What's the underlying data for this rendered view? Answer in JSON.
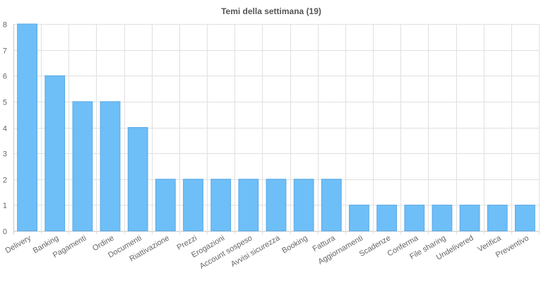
{
  "chart_data": {
    "type": "bar",
    "title": "Temi della settimana (19)",
    "xlabel": "",
    "ylabel": "",
    "categories": [
      "Delivery",
      "Banking",
      "Pagamenti",
      "Ordine",
      "Documenti",
      "Riattivazione",
      "Prezzi",
      "Erogazioni",
      "Account sospeso",
      "Avvisi sicurezza",
      "Booking",
      "Fattura",
      "Aggiornamenti",
      "Scadenze",
      "Conferma",
      "File sharing",
      "Undelivered",
      "Verifica",
      "Preventivo"
    ],
    "values": [
      8,
      6,
      5,
      5,
      4,
      2,
      2,
      2,
      2,
      2,
      2,
      2,
      1,
      1,
      1,
      1,
      1,
      1,
      1
    ],
    "ylim": [
      0,
      8
    ],
    "yticks": [
      0,
      1,
      2,
      3,
      4,
      5,
      6,
      7,
      8
    ],
    "grid": true,
    "legend": "none",
    "bar_color": "#6ebef7",
    "bar_border_color": "#5aa9e6"
  }
}
